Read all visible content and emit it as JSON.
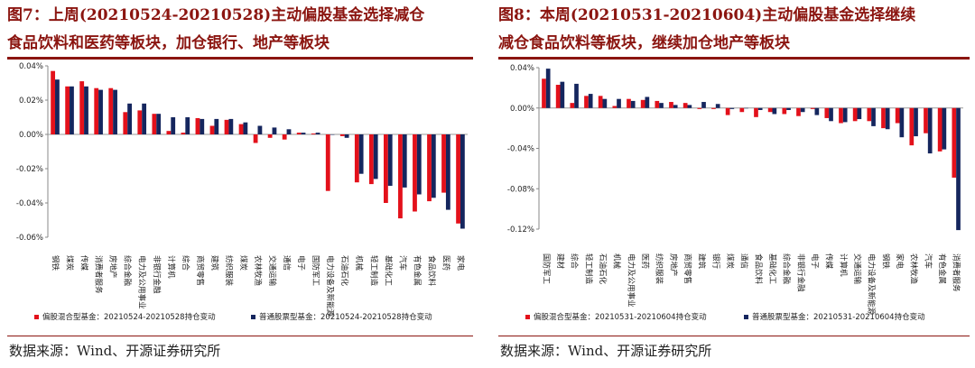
{
  "panels": [
    {
      "title_line1": "图7：上周(20210524-20210528)主动偏股基金选择减仓",
      "title_line2": "食品饮料和医药等板块，加仓银行、地产等板块",
      "source": "数据来源：Wind、开源证券研究所"
    },
    {
      "title_line1": "图8：本周(20210531-20210604)主动偏股基金选择继续",
      "title_line2": "减仓食品饮料等板块，继续加仓地产等板块",
      "source": "数据来源：Wind、开源证券研究所"
    }
  ],
  "chart_data": [
    {
      "type": "bar",
      "ylim": [
        -0.06,
        0.04
      ],
      "yticks": [
        -0.06,
        -0.04,
        -0.02,
        0.0,
        0.02,
        0.04
      ],
      "ytick_labels": [
        "-0.06%",
        "-0.04%",
        "-0.02%",
        "0.00%",
        "0.02%",
        "0.04%"
      ],
      "categories": [
        "钢铁",
        "煤炭",
        "传媒",
        "消费者服务",
        "房地产",
        "综合金融",
        "电力及公用事业",
        "非银行金融",
        "计算机",
        "综合",
        "商贸零售",
        "建筑",
        "纺织服装",
        "煤炭",
        "农林牧渔",
        "交通运输",
        "通信",
        "电子",
        "国防军工",
        "电力设备及新能源",
        "石油石化",
        "机械",
        "轻工制造",
        "基础化工",
        "汽车",
        "有色金属",
        "食品饮料",
        "医药",
        "家电"
      ],
      "series": [
        {
          "name": "偏股混合型基金：20210524-20210528持仓变动",
          "color": "#e3111b",
          "values": [
            0.037,
            0.028,
            0.031,
            0.027,
            0.027,
            0.013,
            0.014,
            0.012,
            0.002,
            0.001,
            0.0095,
            0.005,
            0.0085,
            0.006,
            -0.005,
            -0.002,
            -0.003,
            0.001,
            0.0005,
            -0.033,
            -0.001,
            -0.028,
            -0.029,
            -0.04,
            -0.049,
            -0.045,
            -0.039,
            -0.034,
            -0.052
          ]
        },
        {
          "name": "普通股票型基金：20210524-20210528持仓变动",
          "color": "#15265e",
          "values": [
            0.032,
            0.028,
            0.028,
            0.026,
            0.026,
            0.018,
            0.018,
            0.012,
            0.01,
            0.01,
            0.009,
            0.009,
            0.009,
            0.007,
            0.005,
            0.004,
            0.003,
            0.001,
            0.001,
            0.0,
            -0.002,
            -0.023,
            -0.026,
            -0.03,
            -0.031,
            -0.035,
            -0.037,
            -0.044,
            -0.055
          ]
        }
      ]
    },
    {
      "type": "bar",
      "ylim": [
        -0.12,
        0.04
      ],
      "yticks": [
        -0.12,
        -0.08,
        -0.04,
        0.0,
        0.04
      ],
      "ytick_labels": [
        "-0.12%",
        "-0.08%",
        "-0.04%",
        "0.00%",
        "0.04%"
      ],
      "categories": [
        "国防军工",
        "建材",
        "综合",
        "轻工制造",
        "石油石化",
        "机械",
        "电力及公用事业",
        "医药",
        "纺织服装",
        "房地产",
        "商贸零售",
        "建筑",
        "银行",
        "煤炭",
        "通信",
        "食品饮料",
        "基础化工",
        "综合金融",
        "非银行金融",
        "电子",
        "传媒",
        "计算机",
        "交通运输",
        "电力设备及新能源",
        "钢铁",
        "家电",
        "农林牧渔",
        "汽车",
        "有色金属",
        "消费者服务"
      ],
      "series": [
        {
          "name": "偏股混合型基金：20210531-20210604持仓变动",
          "color": "#e3111b",
          "values": [
            0.029,
            0.023,
            0.005,
            0.012,
            0.012,
            0.002,
            0.009,
            0.008,
            0.007,
            0.006,
            0.005,
            -0.001,
            -0.001,
            -0.007,
            -0.004,
            -0.009,
            -0.004,
            -0.006,
            -0.008,
            -0.001,
            -0.01,
            -0.015,
            -0.013,
            -0.013,
            -0.02,
            -0.015,
            -0.037,
            -0.025,
            -0.043,
            -0.069
          ]
        },
        {
          "name": "普通股票型基金：20210531-20210604持仓变动",
          "color": "#15265e",
          "values": [
            0.039,
            0.026,
            0.024,
            0.014,
            0.009,
            0.009,
            0.007,
            0.011,
            0.005,
            0.003,
            0.003,
            0.006,
            0.004,
            -0.001,
            0.0,
            -0.002,
            -0.006,
            -0.002,
            -0.004,
            -0.007,
            -0.013,
            -0.014,
            -0.011,
            -0.018,
            -0.021,
            -0.029,
            -0.028,
            -0.045,
            -0.041,
            -0.121
          ]
        }
      ]
    }
  ]
}
